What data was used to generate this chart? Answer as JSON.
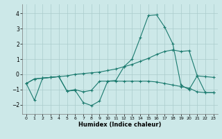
{
  "xlabel": "Humidex (Indice chaleur)",
  "bg_color": "#cce8e8",
  "line_color": "#1a7a6e",
  "grid_color": "#aacccc",
  "xlim": [
    -0.5,
    23.5
  ],
  "ylim": [
    -2.6,
    4.6
  ],
  "yticks": [
    -2,
    -1,
    0,
    1,
    2,
    3,
    4
  ],
  "xticks": [
    0,
    1,
    2,
    3,
    4,
    5,
    6,
    7,
    8,
    9,
    10,
    11,
    12,
    13,
    14,
    15,
    16,
    17,
    18,
    19,
    20,
    21,
    22,
    23
  ],
  "series1": [
    [
      0,
      -0.6
    ],
    [
      1,
      -1.7
    ],
    [
      2,
      -0.25
    ],
    [
      3,
      -0.2
    ],
    [
      4,
      -0.15
    ],
    [
      5,
      -1.1
    ],
    [
      6,
      -1.05
    ],
    [
      7,
      -1.85
    ],
    [
      8,
      -2.05
    ],
    [
      9,
      -1.75
    ],
    [
      10,
      -0.45
    ],
    [
      11,
      -0.4
    ],
    [
      12,
      0.5
    ],
    [
      13,
      1.0
    ],
    [
      14,
      2.4
    ],
    [
      15,
      3.85
    ],
    [
      16,
      3.9
    ],
    [
      17,
      3.1
    ],
    [
      18,
      2.0
    ],
    [
      19,
      -0.7
    ],
    [
      20,
      -1.0
    ],
    [
      21,
      -0.1
    ],
    [
      22,
      -1.2
    ],
    [
      23,
      -1.2
    ]
  ],
  "series2": [
    [
      0,
      -0.6
    ],
    [
      1,
      -0.3
    ],
    [
      2,
      -0.25
    ],
    [
      3,
      -0.2
    ],
    [
      4,
      -0.15
    ],
    [
      5,
      -0.1
    ],
    [
      6,
      0.0
    ],
    [
      7,
      0.05
    ],
    [
      8,
      0.1
    ],
    [
      9,
      0.15
    ],
    [
      10,
      0.25
    ],
    [
      11,
      0.35
    ],
    [
      12,
      0.5
    ],
    [
      13,
      0.65
    ],
    [
      14,
      0.85
    ],
    [
      15,
      1.05
    ],
    [
      16,
      1.3
    ],
    [
      17,
      1.5
    ],
    [
      18,
      1.6
    ],
    [
      19,
      1.5
    ],
    [
      20,
      1.55
    ],
    [
      21,
      -0.1
    ],
    [
      22,
      -0.15
    ],
    [
      23,
      -0.2
    ]
  ],
  "series3": [
    [
      0,
      -0.6
    ],
    [
      1,
      -0.3
    ],
    [
      2,
      -0.25
    ],
    [
      3,
      -0.2
    ],
    [
      4,
      -0.15
    ],
    [
      5,
      -1.1
    ],
    [
      6,
      -1.0
    ],
    [
      7,
      -1.15
    ],
    [
      8,
      -1.05
    ],
    [
      9,
      -0.45
    ],
    [
      10,
      -0.45
    ],
    [
      11,
      -0.45
    ],
    [
      12,
      -0.45
    ],
    [
      13,
      -0.45
    ],
    [
      14,
      -0.45
    ],
    [
      15,
      -0.45
    ],
    [
      16,
      -0.5
    ],
    [
      17,
      -0.6
    ],
    [
      18,
      -0.7
    ],
    [
      19,
      -0.8
    ],
    [
      20,
      -0.9
    ],
    [
      21,
      -1.15
    ],
    [
      22,
      -1.2
    ],
    [
      23,
      -1.2
    ]
  ]
}
